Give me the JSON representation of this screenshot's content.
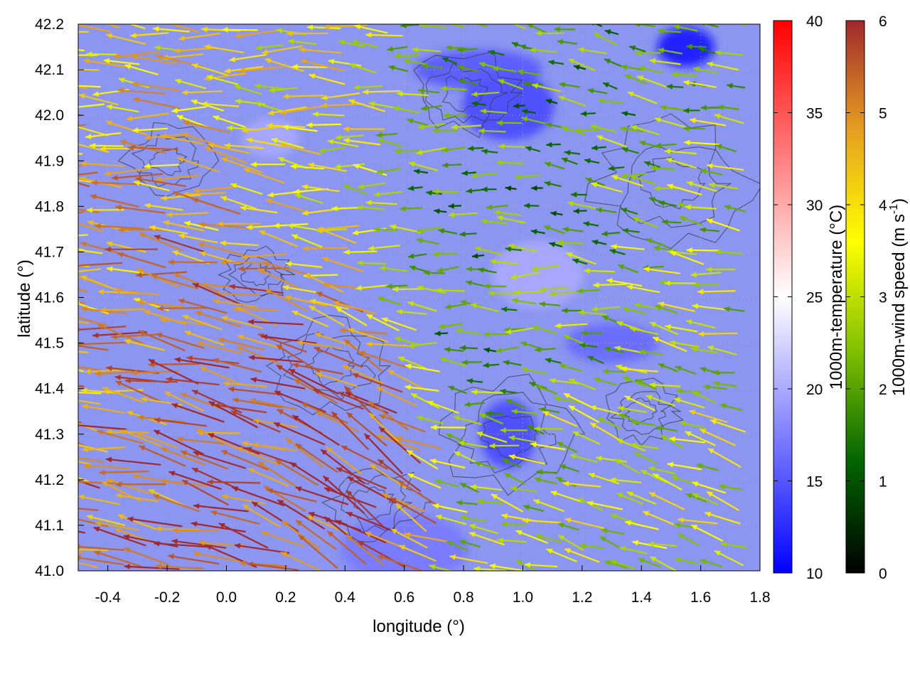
{
  "chart_data": {
    "type": "heatmap",
    "title": "",
    "xlabel": "longitude (°)",
    "ylabel": "latitude (°)",
    "xlim": [
      -0.5,
      1.8
    ],
    "ylim": [
      41.0,
      42.2
    ],
    "x_ticks": [
      "-0.4",
      "-0.2",
      "0.0",
      "0.2",
      "0.4",
      "0.6",
      "0.8",
      "1.0",
      "1.2",
      "1.4",
      "1.6",
      "1.8"
    ],
    "y_ticks": [
      "41.0",
      "41.1",
      "41.2",
      "41.3",
      "41.4",
      "41.5",
      "41.6",
      "41.7",
      "41.8",
      "41.9",
      "42.0",
      "42.1",
      "42.2"
    ],
    "grid": true,
    "overlays": [
      "temperature field",
      "elevation contours",
      "wind vectors"
    ],
    "colorbars": [
      {
        "label": "1000m-temperature (°C)",
        "range": [
          10,
          40
        ],
        "ticks": [
          "10",
          "15",
          "20",
          "25",
          "30",
          "35",
          "40"
        ],
        "colors": [
          "#0000ff",
          "#ffffff",
          "#ff0000"
        ]
      },
      {
        "label": "1000m-wind speed (m s-1)",
        "label_main": "1000m-wind speed (m s",
        "label_sup": "-1",
        "label_end": ")",
        "range": [
          0,
          6
        ],
        "ticks": [
          "0",
          "1",
          "2",
          "3",
          "4",
          "5",
          "6"
        ],
        "colors": [
          "#000000",
          "#006400",
          "#7fbf00",
          "#ffff00",
          "#e6a020",
          "#a0282c"
        ]
      }
    ],
    "temperature_centers": [
      {
        "lon": 1.55,
        "lat": 42.15,
        "temp": 11
      },
      {
        "lon": 0.95,
        "lat": 42.02,
        "temp": 14
      },
      {
        "lon": 0.85,
        "lat": 42.1,
        "temp": 15
      },
      {
        "lon": 0.95,
        "lat": 41.3,
        "temp": 14
      },
      {
        "lon": 1.3,
        "lat": 41.5,
        "temp": 16
      },
      {
        "lon": 0.6,
        "lat": 41.05,
        "temp": 17
      },
      {
        "lon": 0.15,
        "lat": 41.95,
        "temp": 20
      },
      {
        "lon": 1.05,
        "lat": 41.65,
        "temp": 20
      }
    ],
    "wind_regions": [
      {
        "lon": 0.0,
        "lat": 41.4,
        "u": -3.5,
        "v": 0.9,
        "speed": 5.5,
        "radius": 0.35
      },
      {
        "lon": -0.3,
        "lat": 41.6,
        "u": -3.0,
        "v": 0.3,
        "speed": 4.5,
        "radius": 0.3
      },
      {
        "lon": 0.45,
        "lat": 41.25,
        "u": -2.0,
        "v": 1.5,
        "speed": 5.8,
        "radius": 0.2
      },
      {
        "lon": 1.4,
        "lat": 41.1,
        "u": -2.5,
        "v": 0.8,
        "speed": 3.2,
        "radius": 0.4
      },
      {
        "lon": 1.0,
        "lat": 41.7,
        "u": -1.5,
        "v": 0.0,
        "speed": 1.8,
        "radius": 0.35
      },
      {
        "lon": 1.2,
        "lat": 42.1,
        "u": -1.0,
        "v": 0.3,
        "speed": 2.0,
        "radius": 0.35
      },
      {
        "lon": 0.2,
        "lat": 42.0,
        "u": -2.5,
        "v": 0.2,
        "speed": 3.8,
        "radius": 0.3
      },
      {
        "lon": 1.6,
        "lat": 41.7,
        "u": -2.0,
        "v": 0.2,
        "speed": 3.0,
        "radius": 0.3
      }
    ]
  }
}
